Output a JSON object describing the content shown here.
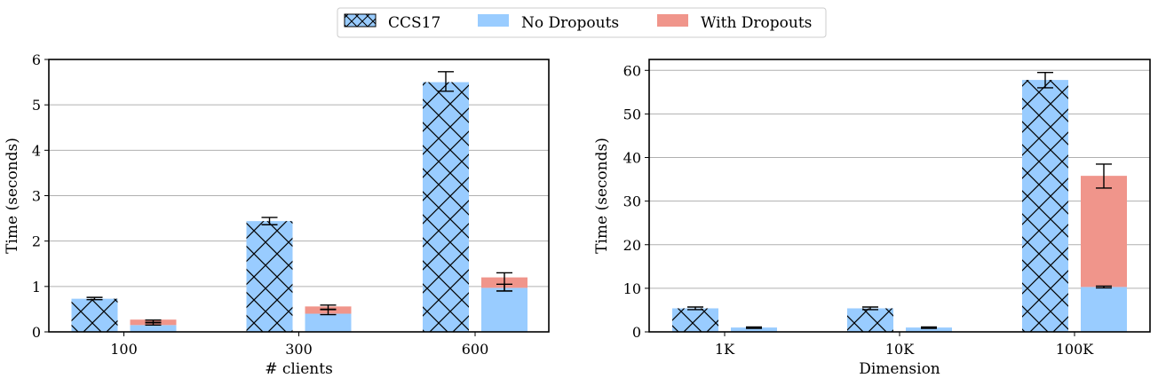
{
  "legend": {
    "placement": "top-center",
    "entries": [
      {
        "name": "CCS17",
        "color": "#99ccff",
        "hatch": "cross"
      },
      {
        "name": "No Dropouts",
        "color": "#99ccff"
      },
      {
        "name": "With Dropouts",
        "color": "#f0958b"
      }
    ]
  },
  "chart_data": [
    {
      "type": "bar",
      "xlabel": "# clients",
      "ylabel": "Time (seconds)",
      "categories": [
        "100",
        "300",
        "600"
      ],
      "ylim": [
        0,
        6
      ],
      "yticks": [
        0,
        1,
        2,
        3,
        4,
        5,
        6
      ],
      "grid": "y",
      "series": [
        {
          "name": "CCS17",
          "values": [
            0.73,
            2.44,
            5.5
          ],
          "err": [
            [
              0.73
            ],
            [
              2.44
            ],
            [
              5.5
            ]
          ],
          "err_low": [
            0.71,
            2.36,
            5.3
          ],
          "err_high": [
            0.76,
            2.52,
            5.73
          ]
        },
        {
          "name": "No Dropouts",
          "values": [
            0.15,
            0.4,
            0.97
          ],
          "err_low": [
            0.15,
            0.38,
            0.9
          ],
          "err_high": [
            0.2,
            0.49,
            1.05
          ]
        },
        {
          "name": "With Dropouts",
          "values": [
            0.12,
            0.16,
            0.23
          ],
          "err_low": [
            0.21,
            0.5,
            0.9
          ],
          "err_high": [
            0.26,
            0.59,
            1.3
          ]
        }
      ]
    },
    {
      "type": "bar",
      "xlabel": "Dimension",
      "ylabel": "Time (seconds)",
      "categories": [
        "1K",
        "10K",
        "100K"
      ],
      "ylim": [
        0,
        62.5
      ],
      "yticks": [
        0,
        10,
        20,
        30,
        40,
        50,
        60
      ],
      "grid": "y",
      "series": [
        {
          "name": "CCS17",
          "values": [
            5.4,
            5.4,
            57.8
          ],
          "err_low": [
            5.1,
            5.1,
            56.0
          ],
          "err_high": [
            5.7,
            5.7,
            59.5
          ]
        },
        {
          "name": "No Dropouts",
          "values": [
            1.0,
            1.0,
            10.3
          ],
          "err_low": [
            0.8,
            0.8,
            10.1
          ],
          "err_high": [
            1.1,
            1.1,
            10.5
          ]
        },
        {
          "name": "With Dropouts",
          "values": [
            0.0,
            0.0,
            25.5
          ],
          "err_low": [
            0.9,
            0.9,
            33.0
          ],
          "err_high": [
            1.1,
            1.1,
            38.5
          ]
        }
      ]
    }
  ]
}
